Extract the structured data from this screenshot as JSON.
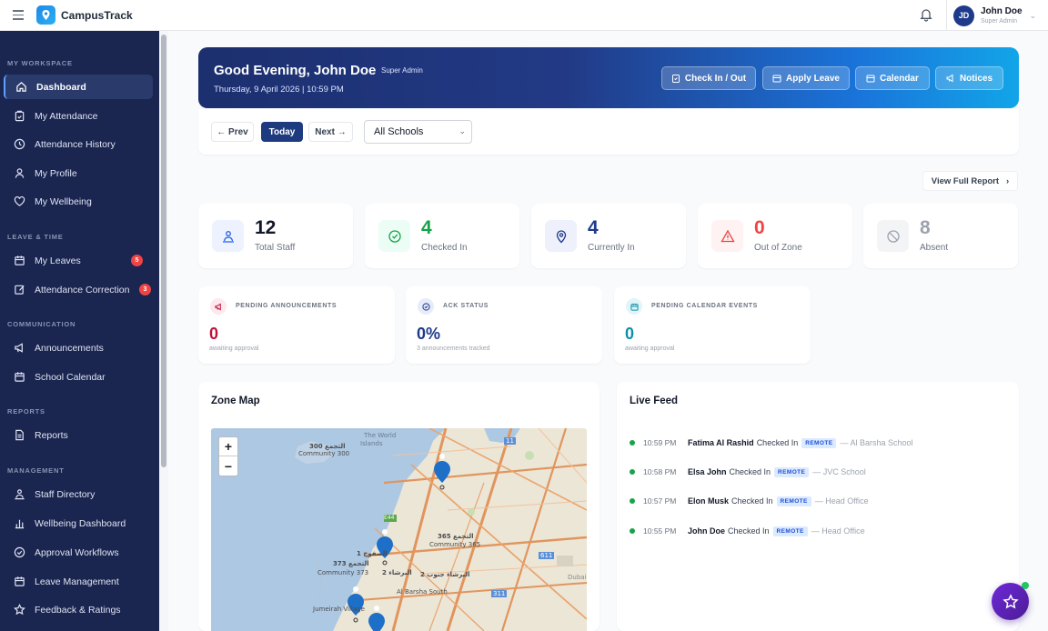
{
  "app": {
    "name": "CampusTrack"
  },
  "user": {
    "initials": "JD",
    "name": "John Doe",
    "role": "Super Admin"
  },
  "sidebar": {
    "sections": {
      "workspace": "MY WORKSPACE",
      "leave": "LEAVE & TIME",
      "communication": "COMMUNICATION",
      "reports": "REPORTS",
      "management": "MANAGEMENT"
    },
    "items": {
      "dashboard": "Dashboard",
      "attendance": "My Attendance",
      "history": "Attendance History",
      "profile": "My Profile",
      "wellbeing": "My Wellbeing",
      "leaves": "My Leaves",
      "correction": "Attendance Correction",
      "announcements": "Announcements",
      "calendar": "School Calendar",
      "reports": "Reports",
      "directory": "Staff Directory",
      "wellbeing_dash": "Wellbeing Dashboard",
      "approvals": "Approval Workflows",
      "leave_mgmt": "Leave Management",
      "feedback": "Feedback & Ratings"
    },
    "badges": {
      "leaves": "5",
      "correction": "3"
    }
  },
  "hero": {
    "greeting": "Good Evening, John Doe",
    "role": "Super Admin",
    "date": "Thursday, 9 April 2026 | 10:59 PM",
    "buttons": {
      "checkin": "Check In / Out",
      "leave": "Apply Leave",
      "calendar": "Calendar",
      "notices": "Notices"
    }
  },
  "datenav": {
    "prev": "← Prev",
    "today": "Today",
    "next": "Next →",
    "school": "All Schools"
  },
  "view_report": "View Full Report",
  "stats": {
    "total": {
      "value": "12",
      "label": "Total Staff",
      "color": "#111827"
    },
    "checked": {
      "value": "4",
      "label": "Checked In",
      "color": "#16a34a"
    },
    "current": {
      "value": "4",
      "label": "Currently In",
      "color": "#1e3a8a"
    },
    "out": {
      "value": "0",
      "label": "Out of Zone",
      "color": "#ef4444"
    },
    "absent": {
      "value": "8",
      "label": "Absent",
      "color": "#9ca3af"
    }
  },
  "mini": {
    "pending_ann": {
      "title": "PENDING ANNOUNCEMENTS",
      "value": "0",
      "sub": "awaiting approval",
      "color": "#be123c"
    },
    "ack": {
      "title": "ACK STATUS",
      "value": "0%",
      "sub": "3 announcements tracked",
      "color": "#1e3a8a"
    },
    "pending_cal": {
      "title": "PENDING CALENDAR EVENTS",
      "value": "0",
      "sub": "awaiting approval",
      "color": "#0e8fa8"
    }
  },
  "zone_map": {
    "title": "Zone Map",
    "zoom_in": "+",
    "zoom_out": "−",
    "labels": {
      "l300": "التجمع 300",
      "c300": "Community 300",
      "world": "The World",
      "islands": "Islands",
      "l365": "التجمع 365",
      "c365": "Community 365",
      "l373": "التجمع 373",
      "c373": "Community 373",
      "sufouh": "الصفوح 1",
      "barsha2": "البرشاء 2",
      "barsha_s2": "البرشاء جنوب 2",
      "barsha_s": "Al Barsha South",
      "jumeirah": "Jumeirah Village",
      "dubai": "Dubai",
      "r11": "11",
      "r611": "611",
      "e44": "E44",
      "e311": "311"
    }
  },
  "live_feed": {
    "title": "Live Feed",
    "entries": [
      {
        "time": "10:59 PM",
        "name": "Fatima Al Rashid",
        "action": "Checked In",
        "tag": "REMOTE",
        "location": "— Al Barsha School"
      },
      {
        "time": "10:58 PM",
        "name": "Elsa John",
        "action": "Checked In",
        "tag": "REMOTE",
        "location": "— JVC School"
      },
      {
        "time": "10:57 PM",
        "name": "Elon Musk",
        "action": "Checked In",
        "tag": "REMOTE",
        "location": "— Head Office"
      },
      {
        "time": "10:55 PM",
        "name": "John Doe",
        "action": "Checked In",
        "tag": "REMOTE",
        "location": "— Head Office"
      }
    ]
  }
}
